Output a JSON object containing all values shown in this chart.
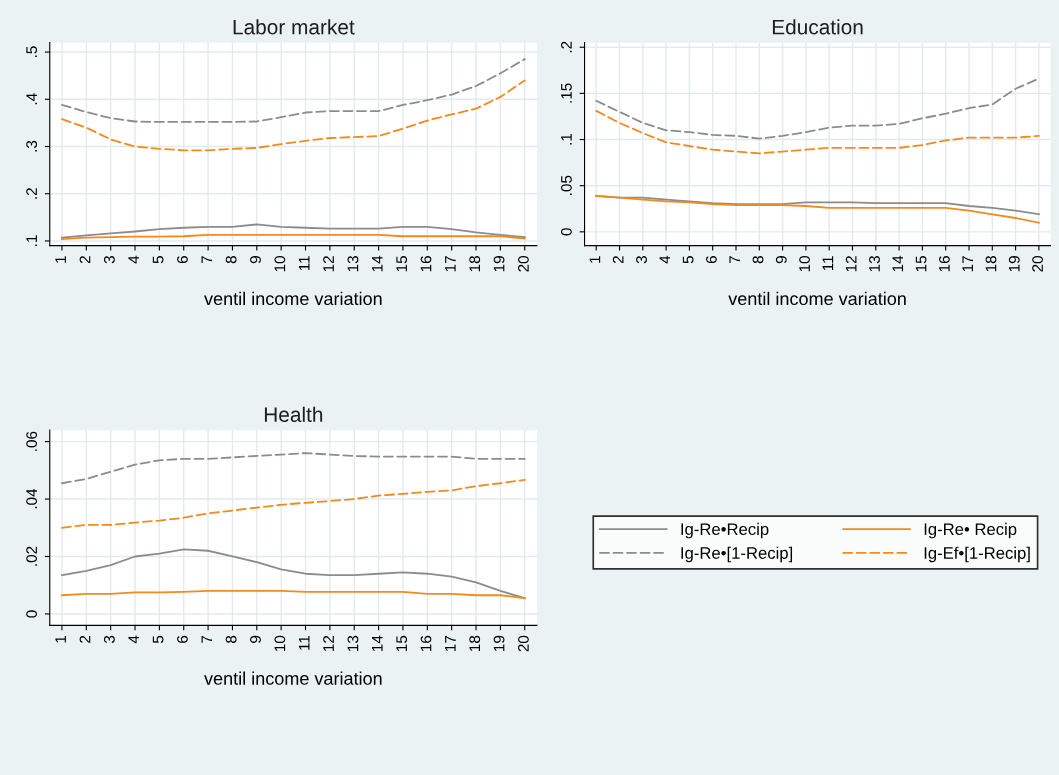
{
  "chart_data": [
    {
      "type": "line",
      "title": "Labor market",
      "xlabel": "ventil income variation",
      "categories": [
        "1",
        "2",
        "3",
        "4",
        "5",
        "6",
        "7",
        "8",
        "9",
        "10",
        "11",
        "12",
        "13",
        "14",
        "15",
        "16",
        "17",
        "18",
        "19",
        "20"
      ],
      "ylim": [
        0.09,
        0.52
      ],
      "yticks": [
        {
          "value": 0.1,
          "label": ".1"
        },
        {
          "value": 0.2,
          "label": ".2"
        },
        {
          "value": 0.3,
          "label": ".3"
        },
        {
          "value": 0.4,
          "label": ".4"
        },
        {
          "value": 0.5,
          "label": ".5"
        }
      ],
      "grid": true,
      "legend": false,
      "series": [
        {
          "color": "#8c8c8c",
          "line_style": "solid",
          "values": [
            0.107,
            0.112,
            0.116,
            0.12,
            0.125,
            0.128,
            0.13,
            0.13,
            0.135,
            0.13,
            0.128,
            0.126,
            0.126,
            0.126,
            0.13,
            0.13,
            0.125,
            0.118,
            0.113,
            0.108
          ]
        },
        {
          "color": "#f28a1e",
          "line_style": "solid",
          "values": [
            0.104,
            0.107,
            0.108,
            0.109,
            0.109,
            0.11,
            0.113,
            0.113,
            0.113,
            0.113,
            0.113,
            0.113,
            0.113,
            0.113,
            0.11,
            0.11,
            0.11,
            0.11,
            0.11,
            0.105
          ]
        },
        {
          "color": "#8c8c8c",
          "line_style": "dashed",
          "values": [
            0.388,
            0.373,
            0.36,
            0.353,
            0.352,
            0.352,
            0.352,
            0.352,
            0.353,
            0.362,
            0.372,
            0.375,
            0.375,
            0.375,
            0.388,
            0.398,
            0.41,
            0.428,
            0.455,
            0.485
          ]
        },
        {
          "color": "#f28a1e",
          "line_style": "dashed",
          "values": [
            0.358,
            0.34,
            0.315,
            0.3,
            0.295,
            0.292,
            0.292,
            0.295,
            0.297,
            0.305,
            0.312,
            0.318,
            0.32,
            0.322,
            0.338,
            0.355,
            0.368,
            0.38,
            0.405,
            0.44
          ]
        }
      ]
    },
    {
      "type": "line",
      "title": "Education",
      "xlabel": "ventil income variation",
      "categories": [
        "1",
        "2",
        "3",
        "4",
        "5",
        "6",
        "7",
        "8",
        "9",
        "10",
        "11",
        "12",
        "13",
        "14",
        "15",
        "16",
        "17",
        "18",
        "19",
        "20"
      ],
      "ylim": [
        -0.015,
        0.205
      ],
      "yticks": [
        0,
        {
          "value": 0.05,
          "label": ".05"
        },
        {
          "value": 0.1,
          "label": ".1"
        },
        {
          "value": 0.15,
          "label": ".15"
        },
        {
          "value": 0.2,
          "label": ".2"
        }
      ],
      "grid": true,
      "legend": false,
      "series": [
        {
          "color": "#8c8c8c",
          "line_style": "solid",
          "values": [
            0.039,
            0.037,
            0.037,
            0.035,
            0.033,
            0.031,
            0.03,
            0.03,
            0.03,
            0.032,
            0.032,
            0.032,
            0.031,
            0.031,
            0.031,
            0.031,
            0.028,
            0.026,
            0.023,
            0.019
          ]
        },
        {
          "color": "#f28a1e",
          "line_style": "solid",
          "values": [
            0.039,
            0.037,
            0.035,
            0.033,
            0.032,
            0.03,
            0.029,
            0.029,
            0.029,
            0.028,
            0.026,
            0.026,
            0.026,
            0.026,
            0.026,
            0.026,
            0.023,
            0.019,
            0.015,
            0.01
          ]
        },
        {
          "color": "#8c8c8c",
          "line_style": "dashed",
          "values": [
            0.142,
            0.13,
            0.118,
            0.11,
            0.108,
            0.105,
            0.104,
            0.101,
            0.104,
            0.108,
            0.113,
            0.115,
            0.115,
            0.117,
            0.123,
            0.128,
            0.134,
            0.138,
            0.155,
            0.166
          ]
        },
        {
          "color": "#f28a1e",
          "line_style": "dashed",
          "values": [
            0.131,
            0.118,
            0.107,
            0.097,
            0.093,
            0.089,
            0.087,
            0.085,
            0.087,
            0.089,
            0.091,
            0.091,
            0.091,
            0.091,
            0.094,
            0.099,
            0.102,
            0.102,
            0.102,
            0.104
          ]
        }
      ]
    },
    {
      "type": "line",
      "title": "Health",
      "xlabel": "ventil income variation",
      "categories": [
        "1",
        "2",
        "3",
        "4",
        "5",
        "6",
        "7",
        "8",
        "9",
        "10",
        "11",
        "12",
        "13",
        "14",
        "15",
        "16",
        "17",
        "18",
        "19",
        "20"
      ],
      "ylim": [
        -0.004,
        0.064
      ],
      "yticks": [
        0,
        {
          "value": 0.02,
          "label": ".02"
        },
        {
          "value": 0.04,
          "label": ".04"
        },
        {
          "value": 0.06,
          "label": ".06"
        }
      ],
      "grid": true,
      "legend": "right",
      "series": [
        {
          "name": "Ig-Re•Recip",
          "color": "#8c8c8c",
          "line_style": "solid",
          "values": [
            0.0135,
            0.015,
            0.017,
            0.02,
            0.021,
            0.0225,
            0.022,
            0.02,
            0.018,
            0.0155,
            0.014,
            0.0135,
            0.0135,
            0.014,
            0.0145,
            0.014,
            0.013,
            0.011,
            0.008,
            0.0055
          ]
        },
        {
          "name": "Ig-Re• Recip",
          "color": "#f28a1e",
          "line_style": "solid",
          "values": [
            0.0065,
            0.007,
            0.007,
            0.0075,
            0.0075,
            0.0077,
            0.008,
            0.008,
            0.008,
            0.008,
            0.0077,
            0.0077,
            0.0077,
            0.0077,
            0.0077,
            0.007,
            0.007,
            0.0065,
            0.0065,
            0.0055
          ]
        },
        {
          "name": "Ig-Re•[1-Recip]",
          "color": "#8c8c8c",
          "line_style": "dashed",
          "values": [
            0.0455,
            0.047,
            0.0495,
            0.052,
            0.0535,
            0.054,
            0.054,
            0.0545,
            0.055,
            0.0555,
            0.056,
            0.0555,
            0.055,
            0.0548,
            0.0548,
            0.0548,
            0.0548,
            0.054,
            0.054,
            0.054
          ]
        },
        {
          "name": "Ig-Ef•[1-Recip]",
          "color": "#f28a1e",
          "line_style": "dashed",
          "values": [
            0.03,
            0.031,
            0.031,
            0.0318,
            0.0325,
            0.0335,
            0.035,
            0.036,
            0.037,
            0.038,
            0.0387,
            0.0393,
            0.04,
            0.0412,
            0.0418,
            0.0425,
            0.043,
            0.0445,
            0.0455,
            0.0467
          ]
        }
      ]
    }
  ]
}
